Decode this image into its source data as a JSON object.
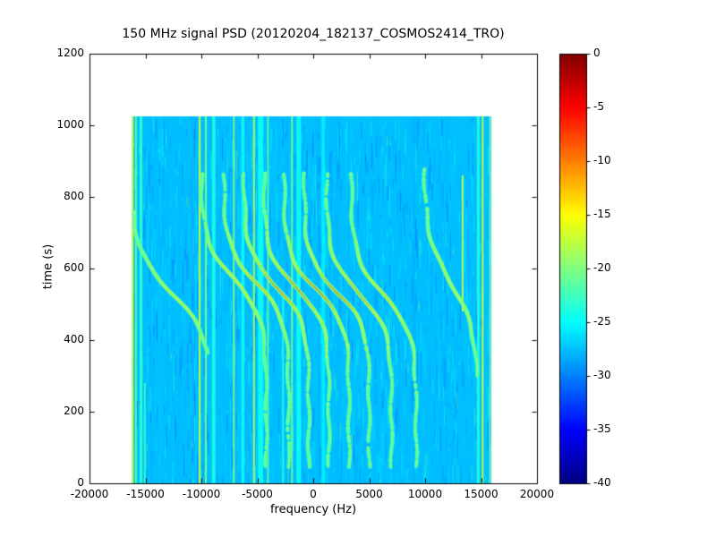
{
  "chart_data": {
    "type": "heatmap",
    "subtype": "spectrogram",
    "title": "150 MHz signal PSD (20120204_182137_COSMOS2414_TRO)",
    "xlabel": "frequency (Hz)",
    "ylabel": "time (s)",
    "xlim": [
      -20000,
      20000
    ],
    "ylim": [
      0,
      1200
    ],
    "xticks": [
      -20000,
      -15000,
      -10000,
      -5000,
      0,
      5000,
      10000,
      15000,
      20000
    ],
    "xtick_labels": [
      "-20000",
      "-15000",
      "-10000",
      "-5000",
      "0",
      "5000",
      "10000",
      "15000",
      "20000"
    ],
    "yticks": [
      0,
      200,
      400,
      600,
      800,
      1000,
      1200
    ],
    "ytick_labels": [
      "0",
      "200",
      "400",
      "600",
      "800",
      "1000",
      "1200"
    ],
    "grid": false,
    "legend": false,
    "colorbar": {
      "colormap": "jet",
      "clim": [
        -40,
        0
      ],
      "ticks": [
        0,
        -5,
        -10,
        -15,
        -20,
        -25,
        -30,
        -35,
        -40
      ],
      "tick_labels": [
        "0",
        "-5",
        "-10",
        "-15",
        "-20",
        "-25",
        "-30",
        "-35",
        "-40"
      ]
    },
    "data_extent": {
      "freq": [
        -16200,
        15900
      ],
      "time": [
        0,
        1025
      ]
    },
    "background_db": -27.5,
    "doppler_traces": [
      {
        "f_center": -12600,
        "amplitude": 3600,
        "t_mid": 530,
        "tau": 120,
        "t_range": [
          360,
          760
        ],
        "peak_db": -16
      },
      {
        "f_center": -7100,
        "amplitude": 2900,
        "t_mid": 570,
        "tau": 105,
        "t_range": [
          45,
          868
        ],
        "peak_db": -12
      },
      {
        "f_center": -5100,
        "amplitude": 2900,
        "t_mid": 560,
        "tau": 100,
        "t_range": [
          45,
          868
        ],
        "peak_db": -8
      },
      {
        "f_center": -3300,
        "amplitude": 2900,
        "t_mid": 550,
        "tau": 100,
        "t_range": [
          45,
          868
        ],
        "peak_db": -4
      },
      {
        "f_center": -1500,
        "amplitude": 2900,
        "t_mid": 545,
        "tau": 95,
        "t_range": [
          45,
          868
        ],
        "peak_db": -3.5
      },
      {
        "f_center": 300,
        "amplitude": 2900,
        "t_mid": 540,
        "tau": 95,
        "t_range": [
          45,
          868
        ],
        "peak_db": -3
      },
      {
        "f_center": 2100,
        "amplitude": 2900,
        "t_mid": 535,
        "tau": 95,
        "t_range": [
          45,
          868
        ],
        "peak_db": -4
      },
      {
        "f_center": 4100,
        "amplitude": 2900,
        "t_mid": 530,
        "tau": 100,
        "t_range": [
          45,
          868
        ],
        "peak_db": -6
      },
      {
        "f_center": 6300,
        "amplitude": 2900,
        "t_mid": 525,
        "tau": 105,
        "t_range": [
          45,
          868
        ],
        "peak_db": -10
      },
      {
        "f_center": 12300,
        "amplitude": 2400,
        "t_mid": 560,
        "tau": 130,
        "t_range": [
          300,
          880
        ],
        "peak_db": -15
      }
    ],
    "rfi_lines": [
      {
        "freq": -16150,
        "db": -17,
        "width_hz": 170,
        "t_range": [
          0,
          1025
        ]
      },
      {
        "freq": -15850,
        "db": -20.5,
        "width_hz": 150,
        "t_range": [
          0,
          1025
        ]
      },
      {
        "freq": -15400,
        "db": -23,
        "width_hz": 240,
        "t_range": [
          0,
          1025
        ]
      },
      {
        "freq": -15050,
        "db": -23,
        "width_hz": 160,
        "t_range": [
          0,
          280
        ]
      },
      {
        "freq": -10150,
        "db": -18,
        "width_hz": 160,
        "t_range": [
          0,
          1025
        ]
      },
      {
        "freq": -9600,
        "db": -20,
        "width_hz": 160,
        "t_range": [
          0,
          1025
        ]
      },
      {
        "freq": -8900,
        "db": -24,
        "width_hz": 320,
        "t_range": [
          0,
          1025
        ]
      },
      {
        "freq": -7100,
        "db": -20,
        "width_hz": 160,
        "t_range": [
          0,
          1025
        ]
      },
      {
        "freq": -6300,
        "db": -24.5,
        "width_hz": 260,
        "t_range": [
          0,
          1025
        ]
      },
      {
        "freq": -5300,
        "db": -19.5,
        "width_hz": 160,
        "t_range": [
          0,
          1025
        ]
      },
      {
        "freq": -4700,
        "db": -24.5,
        "width_hz": 480,
        "t_range": [
          0,
          1025
        ]
      },
      {
        "freq": -4050,
        "db": -21.5,
        "width_hz": 160,
        "t_range": [
          0,
          1025
        ]
      },
      {
        "freq": -2700,
        "db": -23.5,
        "width_hz": 160,
        "t_range": [
          0,
          520
        ]
      },
      {
        "freq": -1900,
        "db": -20.5,
        "width_hz": 160,
        "t_range": [
          0,
          1025
        ]
      },
      {
        "freq": -1300,
        "db": -24.5,
        "width_hz": 400,
        "t_range": [
          0,
          1025
        ]
      },
      {
        "freq": 900,
        "db": -25.5,
        "width_hz": 320,
        "t_range": [
          0,
          1025
        ]
      },
      {
        "freq": 13350,
        "db": -19,
        "width_hz": 160,
        "t_range": [
          480,
          860
        ]
      },
      {
        "freq": 14750,
        "db": -23.5,
        "width_hz": 240,
        "t_range": [
          0,
          1025
        ]
      },
      {
        "freq": 15150,
        "db": -18.5,
        "width_hz": 160,
        "t_range": [
          0,
          1025
        ]
      },
      {
        "freq": 15800,
        "db": -21,
        "width_hz": 150,
        "t_range": [
          0,
          1025
        ]
      }
    ],
    "noise": {
      "seed": 42,
      "streaks": 1800,
      "db_jitter": 4,
      "faint_columns": 55
    }
  }
}
